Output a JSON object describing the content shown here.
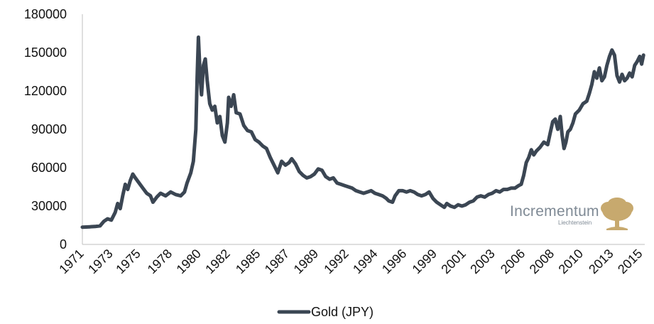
{
  "chart_data": {
    "type": "line",
    "title": "",
    "xlabel": "",
    "ylabel": "",
    "ylim": [
      0,
      180000
    ],
    "xlim": [
      1971.0,
      2015.6
    ],
    "grid": false,
    "legend_position": "bottom",
    "y_ticks": [
      "0",
      "30000",
      "60000",
      "90000",
      "120000",
      "150000",
      "180000"
    ],
    "x_ticks": [
      {
        "year": 1971.0,
        "label": "1971"
      },
      {
        "year": 1973.3,
        "label": "1973"
      },
      {
        "year": 1975.5,
        "label": "1975"
      },
      {
        "year": 1978.0,
        "label": "1978"
      },
      {
        "year": 1980.3,
        "label": "1980"
      },
      {
        "year": 1982.6,
        "label": "1982"
      },
      {
        "year": 1985.0,
        "label": "1985"
      },
      {
        "year": 1987.3,
        "label": "1987"
      },
      {
        "year": 1989.6,
        "label": "1989"
      },
      {
        "year": 1992.0,
        "label": "1992"
      },
      {
        "year": 1994.3,
        "label": "1994"
      },
      {
        "year": 1996.6,
        "label": "1996"
      },
      {
        "year": 1999.0,
        "label": "1999"
      },
      {
        "year": 2001.3,
        "label": "2001"
      },
      {
        "year": 2003.6,
        "label": "2003"
      },
      {
        "year": 2006.0,
        "label": "2006"
      },
      {
        "year": 2008.3,
        "label": "2008"
      },
      {
        "year": 2010.6,
        "label": "2010"
      },
      {
        "year": 2013.0,
        "label": "2013"
      },
      {
        "year": 2015.3,
        "label": "2015"
      }
    ],
    "series": [
      {
        "name": "Gold (JPY)",
        "color": "#3b4653",
        "points": [
          [
            1971.0,
            13500
          ],
          [
            1971.6,
            13800
          ],
          [
            1972.0,
            14000
          ],
          [
            1972.4,
            14500
          ],
          [
            1972.7,
            18000
          ],
          [
            1973.0,
            20000
          ],
          [
            1973.3,
            19000
          ],
          [
            1973.6,
            25000
          ],
          [
            1973.8,
            32000
          ],
          [
            1974.0,
            28000
          ],
          [
            1974.2,
            38000
          ],
          [
            1974.4,
            47000
          ],
          [
            1974.6,
            43000
          ],
          [
            1974.8,
            50000
          ],
          [
            1975.0,
            55000
          ],
          [
            1975.2,
            52000
          ],
          [
            1975.5,
            48000
          ],
          [
            1975.8,
            44000
          ],
          [
            1976.1,
            40000
          ],
          [
            1976.4,
            38000
          ],
          [
            1976.6,
            33000
          ],
          [
            1976.9,
            37000
          ],
          [
            1977.2,
            40000
          ],
          [
            1977.6,
            38000
          ],
          [
            1978.0,
            41000
          ],
          [
            1978.4,
            39000
          ],
          [
            1978.8,
            38000
          ],
          [
            1979.1,
            41000
          ],
          [
            1979.3,
            48000
          ],
          [
            1979.6,
            56000
          ],
          [
            1979.8,
            65000
          ],
          [
            1980.0,
            90000
          ],
          [
            1980.1,
            130000
          ],
          [
            1980.2,
            162000
          ],
          [
            1980.35,
            130000
          ],
          [
            1980.45,
            117000
          ],
          [
            1980.6,
            140000
          ],
          [
            1980.75,
            145000
          ],
          [
            1980.9,
            128000
          ],
          [
            1981.1,
            110000
          ],
          [
            1981.3,
            105000
          ],
          [
            1981.5,
            108000
          ],
          [
            1981.7,
            95000
          ],
          [
            1981.9,
            100000
          ],
          [
            1982.1,
            85000
          ],
          [
            1982.3,
            80000
          ],
          [
            1982.5,
            95000
          ],
          [
            1982.6,
            115000
          ],
          [
            1982.8,
            108000
          ],
          [
            1983.0,
            117000
          ],
          [
            1983.2,
            103000
          ],
          [
            1983.5,
            102000
          ],
          [
            1983.8,
            93000
          ],
          [
            1984.1,
            89000
          ],
          [
            1984.4,
            88000
          ],
          [
            1984.7,
            82000
          ],
          [
            1985.0,
            80000
          ],
          [
            1985.3,
            77000
          ],
          [
            1985.6,
            75000
          ],
          [
            1985.9,
            68000
          ],
          [
            1986.2,
            62000
          ],
          [
            1986.5,
            56000
          ],
          [
            1986.8,
            65000
          ],
          [
            1987.1,
            62000
          ],
          [
            1987.4,
            64000
          ],
          [
            1987.6,
            67000
          ],
          [
            1987.9,
            63000
          ],
          [
            1988.2,
            57000
          ],
          [
            1988.5,
            54000
          ],
          [
            1988.8,
            52000
          ],
          [
            1989.1,
            53000
          ],
          [
            1989.4,
            55000
          ],
          [
            1989.7,
            59000
          ],
          [
            1990.0,
            58000
          ],
          [
            1990.3,
            53000
          ],
          [
            1990.6,
            51000
          ],
          [
            1990.9,
            52000
          ],
          [
            1991.2,
            48000
          ],
          [
            1991.5,
            47000
          ],
          [
            1991.8,
            46000
          ],
          [
            1992.1,
            45000
          ],
          [
            1992.4,
            44000
          ],
          [
            1992.7,
            42000
          ],
          [
            1993.0,
            41000
          ],
          [
            1993.3,
            40000
          ],
          [
            1993.6,
            41000
          ],
          [
            1993.9,
            42000
          ],
          [
            1994.2,
            40000
          ],
          [
            1994.5,
            39000
          ],
          [
            1994.8,
            38000
          ],
          [
            1995.1,
            36000
          ],
          [
            1995.3,
            34000
          ],
          [
            1995.6,
            33000
          ],
          [
            1995.8,
            38000
          ],
          [
            1996.1,
            42000
          ],
          [
            1996.4,
            42000
          ],
          [
            1996.7,
            41000
          ],
          [
            1997.0,
            42000
          ],
          [
            1997.3,
            41000
          ],
          [
            1997.6,
            39000
          ],
          [
            1997.9,
            38000
          ],
          [
            1998.2,
            39000
          ],
          [
            1998.5,
            41000
          ],
          [
            1998.8,
            36000
          ],
          [
            1999.1,
            33000
          ],
          [
            1999.4,
            31000
          ],
          [
            1999.7,
            29000
          ],
          [
            1999.9,
            32000
          ],
          [
            2000.2,
            30000
          ],
          [
            2000.5,
            29000
          ],
          [
            2000.8,
            31000
          ],
          [
            2001.1,
            30000
          ],
          [
            2001.4,
            31000
          ],
          [
            2001.7,
            33000
          ],
          [
            2002.0,
            34000
          ],
          [
            2002.3,
            37000
          ],
          [
            2002.6,
            38000
          ],
          [
            2002.9,
            37000
          ],
          [
            2003.2,
            39000
          ],
          [
            2003.5,
            40000
          ],
          [
            2003.8,
            42000
          ],
          [
            2004.1,
            41000
          ],
          [
            2004.4,
            43000
          ],
          [
            2004.7,
            43000
          ],
          [
            2005.0,
            44000
          ],
          [
            2005.3,
            44000
          ],
          [
            2005.6,
            46000
          ],
          [
            2005.8,
            47000
          ],
          [
            2006.0,
            54000
          ],
          [
            2006.2,
            64000
          ],
          [
            2006.4,
            68000
          ],
          [
            2006.6,
            74000
          ],
          [
            2006.8,
            70000
          ],
          [
            2007.0,
            73000
          ],
          [
            2007.3,
            76000
          ],
          [
            2007.6,
            80000
          ],
          [
            2007.9,
            78000
          ],
          [
            2008.1,
            87000
          ],
          [
            2008.3,
            96000
          ],
          [
            2008.5,
            98000
          ],
          [
            2008.7,
            90000
          ],
          [
            2008.9,
            100000
          ],
          [
            2009.05,
            85000
          ],
          [
            2009.2,
            75000
          ],
          [
            2009.35,
            80000
          ],
          [
            2009.5,
            88000
          ],
          [
            2009.7,
            90000
          ],
          [
            2009.9,
            95000
          ],
          [
            2010.1,
            102000
          ],
          [
            2010.4,
            105000
          ],
          [
            2010.7,
            110000
          ],
          [
            2011.0,
            112000
          ],
          [
            2011.2,
            118000
          ],
          [
            2011.4,
            125000
          ],
          [
            2011.6,
            135000
          ],
          [
            2011.8,
            130000
          ],
          [
            2012.0,
            138000
          ],
          [
            2012.2,
            128000
          ],
          [
            2012.4,
            131000
          ],
          [
            2012.6,
            140000
          ],
          [
            2012.8,
            147000
          ],
          [
            2013.0,
            152000
          ],
          [
            2013.2,
            148000
          ],
          [
            2013.4,
            132000
          ],
          [
            2013.6,
            127000
          ],
          [
            2013.8,
            133000
          ],
          [
            2014.0,
            128000
          ],
          [
            2014.2,
            130000
          ],
          [
            2014.4,
            134000
          ],
          [
            2014.6,
            131000
          ],
          [
            2014.8,
            140000
          ],
          [
            2015.0,
            143000
          ],
          [
            2015.2,
            147000
          ],
          [
            2015.35,
            141000
          ],
          [
            2015.5,
            148000
          ]
        ]
      }
    ]
  },
  "legend": {
    "label": "Gold (JPY)",
    "color": "#3b4653"
  },
  "logo": {
    "name": "Incrementum",
    "sub": "Liechtenstein",
    "color": "#c7a96e"
  }
}
